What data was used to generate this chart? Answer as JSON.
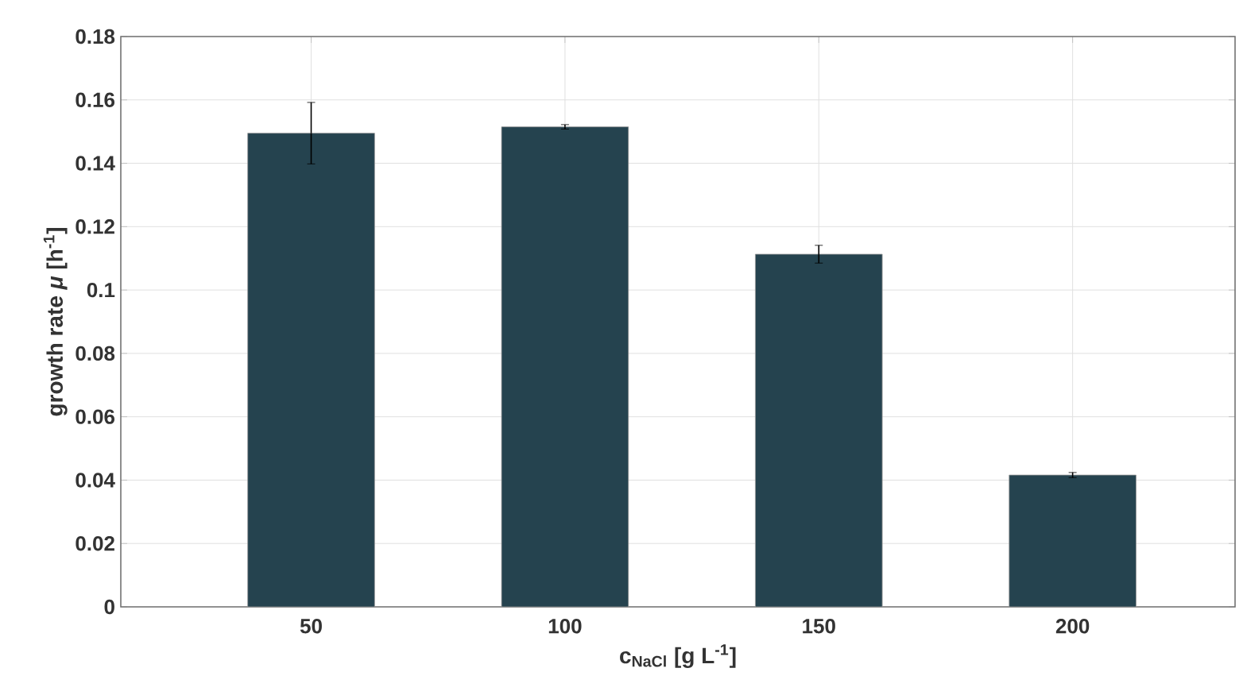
{
  "chart_data": {
    "type": "bar",
    "xlabel": "c$_{NaCl}$ [g L$^{-1}$]",
    "ylabel": "growth rate *μ* [h$^{-1}$]",
    "categories": [
      "50",
      "100",
      "150",
      "200"
    ],
    "values": [
      0.1495,
      0.1515,
      0.1113,
      0.0416
    ],
    "errors": [
      0.0097,
      0.0007,
      0.0028,
      0.0008
    ],
    "color": "#25434f",
    "ylim": [
      0,
      0.18
    ],
    "yticks": [
      0,
      0.02,
      0.04,
      0.06,
      0.08,
      {
        "value": 0.1,
        "label": "0.1"
      },
      0.12,
      0.14,
      0.16,
      0.18
    ],
    "grid": true
  }
}
